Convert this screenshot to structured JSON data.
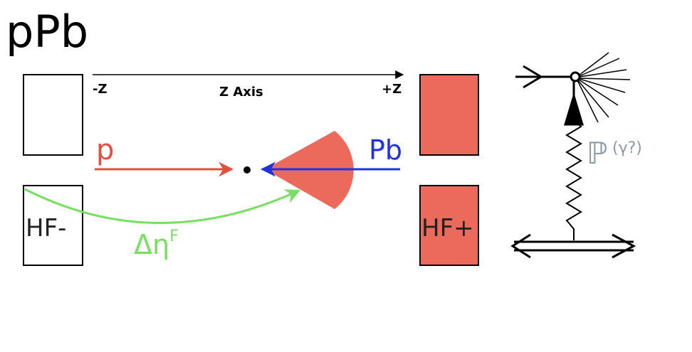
{
  "title": "pPb",
  "axis": {
    "minus": "-Z",
    "label": "Z Axis",
    "plus": "+Z"
  },
  "beams": {
    "proton": "p",
    "lead": "Pb"
  },
  "detectors": {
    "left": "HF-",
    "right": "HF+"
  },
  "gap": {
    "symbol": "Δη",
    "superscript": "F"
  },
  "exchange": {
    "symbol": "ℙ",
    "note": "(γ?)"
  }
}
